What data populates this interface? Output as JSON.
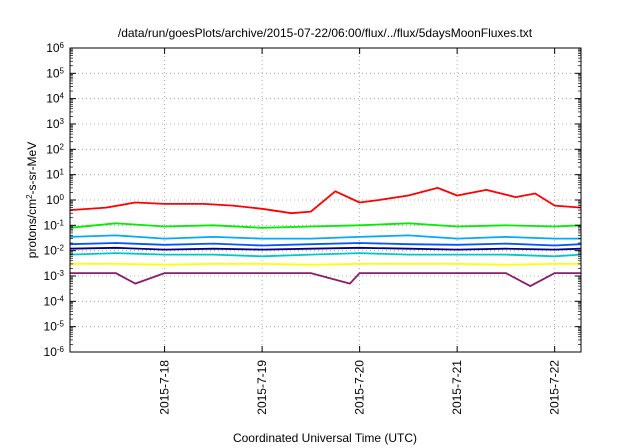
{
  "chart_data": {
    "type": "line",
    "title": "/data/run/goesPlots/archive/2015-07-22/06:00/flux/../flux/5daysMoonFluxes.txt",
    "xlabel": "Coordinated Universal Time (UTC)",
    "ylabel": {
      "base": "protons/cm",
      "sup": "2",
      "rest": "-s-sr-MeV"
    },
    "yscale": "log",
    "ylim_exp": [
      -6,
      6
    ],
    "y_ticks": [
      {
        "base": "10",
        "exp": "-6"
      },
      {
        "base": "10",
        "exp": "-5"
      },
      {
        "base": "10",
        "exp": "-4"
      },
      {
        "base": "10",
        "exp": "-3"
      },
      {
        "base": "10",
        "exp": "-2"
      },
      {
        "base": "10",
        "exp": "-1"
      },
      {
        "base": "10",
        "exp": "0"
      },
      {
        "base": "10",
        "exp": "1"
      },
      {
        "base": "10",
        "exp": "2"
      },
      {
        "base": "10",
        "exp": "3"
      },
      {
        "base": "10",
        "exp": "4"
      },
      {
        "base": "10",
        "exp": "5"
      },
      {
        "base": "10",
        "exp": "6"
      }
    ],
    "xlim_days": [
      -0.97,
      4.27
    ],
    "x_ticks": [
      {
        "label": "2015-7-18",
        "day": 0
      },
      {
        "label": "2015-7-19",
        "day": 1
      },
      {
        "label": "2015-7-20",
        "day": 2
      },
      {
        "label": "2015-7-21",
        "day": 3
      },
      {
        "label": "2015-7-22",
        "day": 4
      }
    ],
    "grid": true,
    "series": [
      {
        "color": "#ff0000",
        "x": [
          -0.97,
          -0.6,
          -0.3,
          0.0,
          0.4,
          0.7,
          1.0,
          1.3,
          1.5,
          1.75,
          2.0,
          2.2,
          2.5,
          2.8,
          3.0,
          3.3,
          3.6,
          3.8,
          4.0,
          4.27
        ],
        "y": [
          0.4,
          0.5,
          0.8,
          0.7,
          0.7,
          0.6,
          0.45,
          0.3,
          0.35,
          2.2,
          0.8,
          1.0,
          1.5,
          3.0,
          1.5,
          2.5,
          1.3,
          1.8,
          0.6,
          0.5
        ]
      },
      {
        "color": "#00ee00",
        "x": [
          -0.97,
          -0.5,
          0.0,
          0.5,
          1.0,
          1.5,
          2.0,
          2.5,
          3.0,
          3.5,
          4.0,
          4.27
        ],
        "y": [
          0.08,
          0.12,
          0.09,
          0.1,
          0.08,
          0.09,
          0.1,
          0.12,
          0.09,
          0.1,
          0.09,
          0.1
        ]
      },
      {
        "color": "#00aaff",
        "x": [
          -0.97,
          -0.5,
          0.0,
          0.5,
          1.0,
          1.5,
          2.0,
          2.5,
          3.0,
          3.5,
          4.0,
          4.27
        ],
        "y": [
          0.035,
          0.04,
          0.03,
          0.035,
          0.03,
          0.03,
          0.035,
          0.04,
          0.03,
          0.035,
          0.03,
          0.03
        ]
      },
      {
        "color": "#0055ff",
        "x": [
          -0.97,
          -0.5,
          0.0,
          0.5,
          1.0,
          1.5,
          2.0,
          2.5,
          3.0,
          3.5,
          4.0,
          4.27
        ],
        "y": [
          0.018,
          0.02,
          0.017,
          0.019,
          0.016,
          0.018,
          0.02,
          0.018,
          0.017,
          0.019,
          0.016,
          0.018
        ]
      },
      {
        "color": "#000088",
        "x": [
          -0.97,
          -0.5,
          0.0,
          0.5,
          1.0,
          1.5,
          2.0,
          2.5,
          3.0,
          3.5,
          4.0,
          4.27
        ],
        "y": [
          0.012,
          0.013,
          0.011,
          0.012,
          0.011,
          0.012,
          0.013,
          0.012,
          0.011,
          0.012,
          0.011,
          0.012
        ]
      },
      {
        "color": "#00c8c8",
        "x": [
          -0.97,
          -0.5,
          0.0,
          0.5,
          1.0,
          1.5,
          2.0,
          2.5,
          3.0,
          3.5,
          4.0,
          4.27
        ],
        "y": [
          0.007,
          0.008,
          0.007,
          0.007,
          0.006,
          0.007,
          0.008,
          0.007,
          0.007,
          0.007,
          0.006,
          0.007
        ]
      },
      {
        "color": "#ffff00",
        "x": [
          -0.97,
          -0.5,
          0.0,
          0.5,
          1.0,
          1.5,
          2.0,
          2.5,
          3.0,
          3.5,
          4.0,
          4.27
        ],
        "y": [
          0.003,
          0.003,
          0.0028,
          0.003,
          0.003,
          0.0028,
          0.003,
          0.003,
          0.003,
          0.0028,
          0.003,
          0.003
        ]
      },
      {
        "color": "#8b1c6e",
        "x": [
          -0.97,
          -0.5,
          -0.3,
          0.0,
          0.5,
          1.0,
          1.5,
          1.9,
          2.0,
          2.5,
          3.0,
          3.5,
          3.75,
          4.0,
          4.27
        ],
        "y": [
          0.0013,
          0.0013,
          0.0005,
          0.0013,
          0.0013,
          0.0013,
          0.0013,
          0.0005,
          0.0013,
          0.0013,
          0.0013,
          0.0013,
          0.0004,
          0.0013,
          0.0013
        ]
      }
    ]
  }
}
